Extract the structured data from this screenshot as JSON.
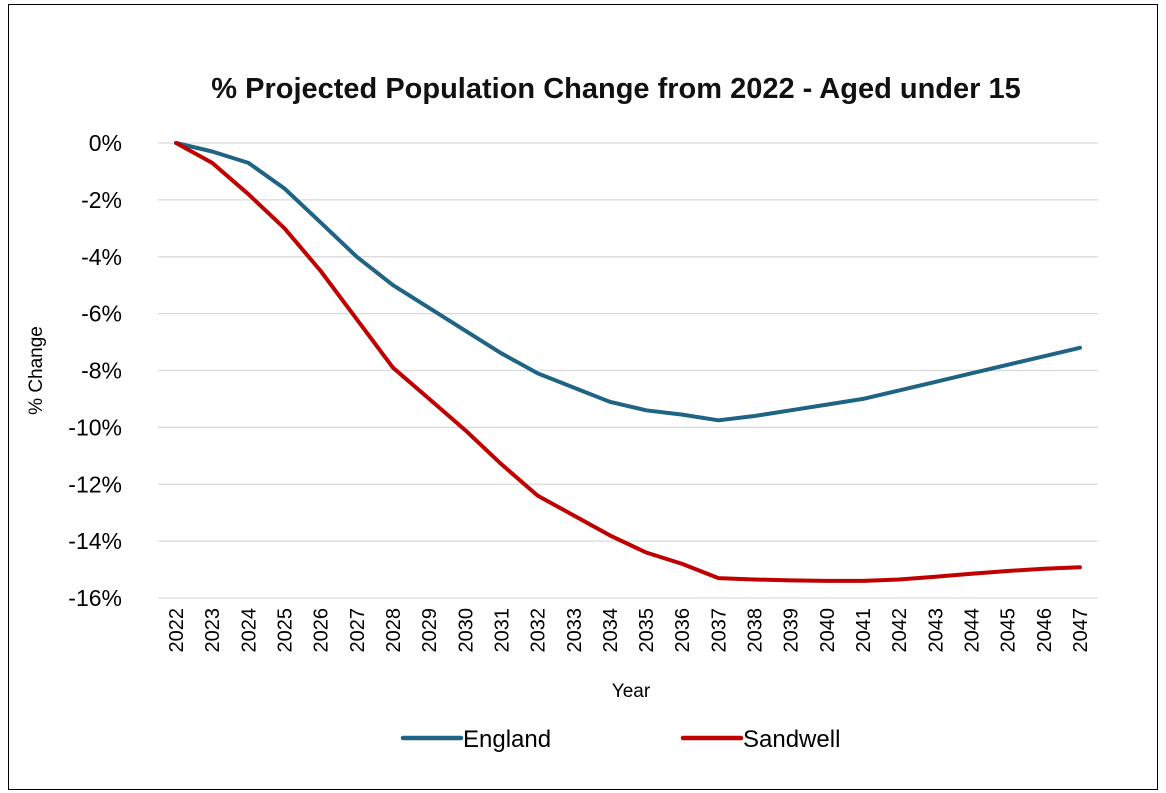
{
  "chart_data": {
    "type": "line",
    "title": "% Projected Population Change from 2022 - Aged under 15",
    "xlabel": "Year",
    "ylabel": "% Change",
    "ylim": [
      -16,
      0
    ],
    "ytick_step": 2,
    "ytick_suffix": "%",
    "grid": true,
    "legend_position": "bottom",
    "x": [
      "2022",
      "2023",
      "2024",
      "2025",
      "2026",
      "2027",
      "2028",
      "2029",
      "2030",
      "2031",
      "2032",
      "2033",
      "2034",
      "2035",
      "2036",
      "2037",
      "2038",
      "2039",
      "2040",
      "2041",
      "2042",
      "2043",
      "2044",
      "2045",
      "2046",
      "2047"
    ],
    "series": [
      {
        "name": "England",
        "color": "#1f6385",
        "values": [
          0,
          -0.3,
          -0.7,
          -1.6,
          -2.8,
          -4.0,
          -5.0,
          -5.8,
          -6.6,
          -7.4,
          -8.1,
          -8.6,
          -9.1,
          -9.4,
          -9.55,
          -9.75,
          -9.6,
          -9.4,
          -9.2,
          -9.0,
          -8.7,
          -8.4,
          -8.1,
          -7.8,
          -7.5,
          -7.2
        ]
      },
      {
        "name": "Sandwell",
        "color": "#c00000",
        "values": [
          0,
          -0.7,
          -1.8,
          -3.0,
          -4.5,
          -6.2,
          -7.9,
          -9.0,
          -10.1,
          -11.3,
          -12.4,
          -13.1,
          -13.8,
          -14.4,
          -14.8,
          -15.3,
          -15.35,
          -15.38,
          -15.4,
          -15.4,
          -15.35,
          -15.25,
          -15.15,
          -15.05,
          -14.97,
          -14.92
        ]
      }
    ]
  }
}
